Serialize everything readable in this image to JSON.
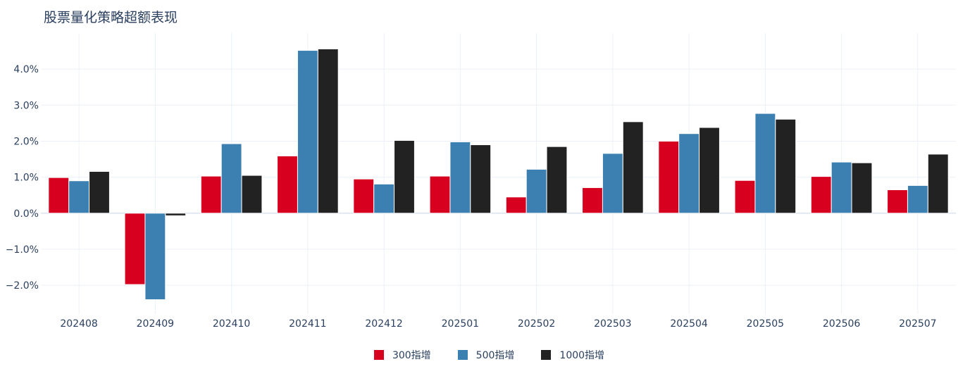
{
  "chart_data": {
    "type": "bar",
    "title": "股票量化策略超额表现",
    "categories": [
      "202408",
      "202409",
      "202410",
      "202411",
      "202412",
      "202501",
      "202502",
      "202503",
      "202504",
      "202505",
      "202506",
      "202507"
    ],
    "series": [
      {
        "name": "300指增",
        "color": "#d7001f",
        "values": [
          0.99,
          -1.98,
          1.03,
          1.59,
          0.95,
          1.03,
          0.45,
          0.71,
          2.0,
          0.91,
          1.02,
          0.65
        ]
      },
      {
        "name": "500指增",
        "color": "#3c7fb1",
        "values": [
          0.9,
          -2.4,
          1.93,
          4.52,
          0.81,
          1.98,
          1.22,
          1.66,
          2.21,
          2.77,
          1.42,
          0.77
        ]
      },
      {
        "name": "1000指增",
        "color": "#222222",
        "values": [
          1.16,
          -0.07,
          1.05,
          4.56,
          2.02,
          1.9,
          1.85,
          2.54,
          2.38,
          2.61,
          1.4,
          1.64
        ]
      }
    ],
    "y_tick_labels": [
      "4.0%",
      "3.0%",
      "2.0%",
      "1.0%",
      "0.0%",
      "−1.0%",
      "−2.0%"
    ],
    "y_tick_values": [
      4,
      3,
      2,
      1,
      0,
      -1,
      -2
    ],
    "ylim": [
      -2.8,
      5.0
    ],
    "grid": true,
    "legend_position": "bottom-center"
  }
}
